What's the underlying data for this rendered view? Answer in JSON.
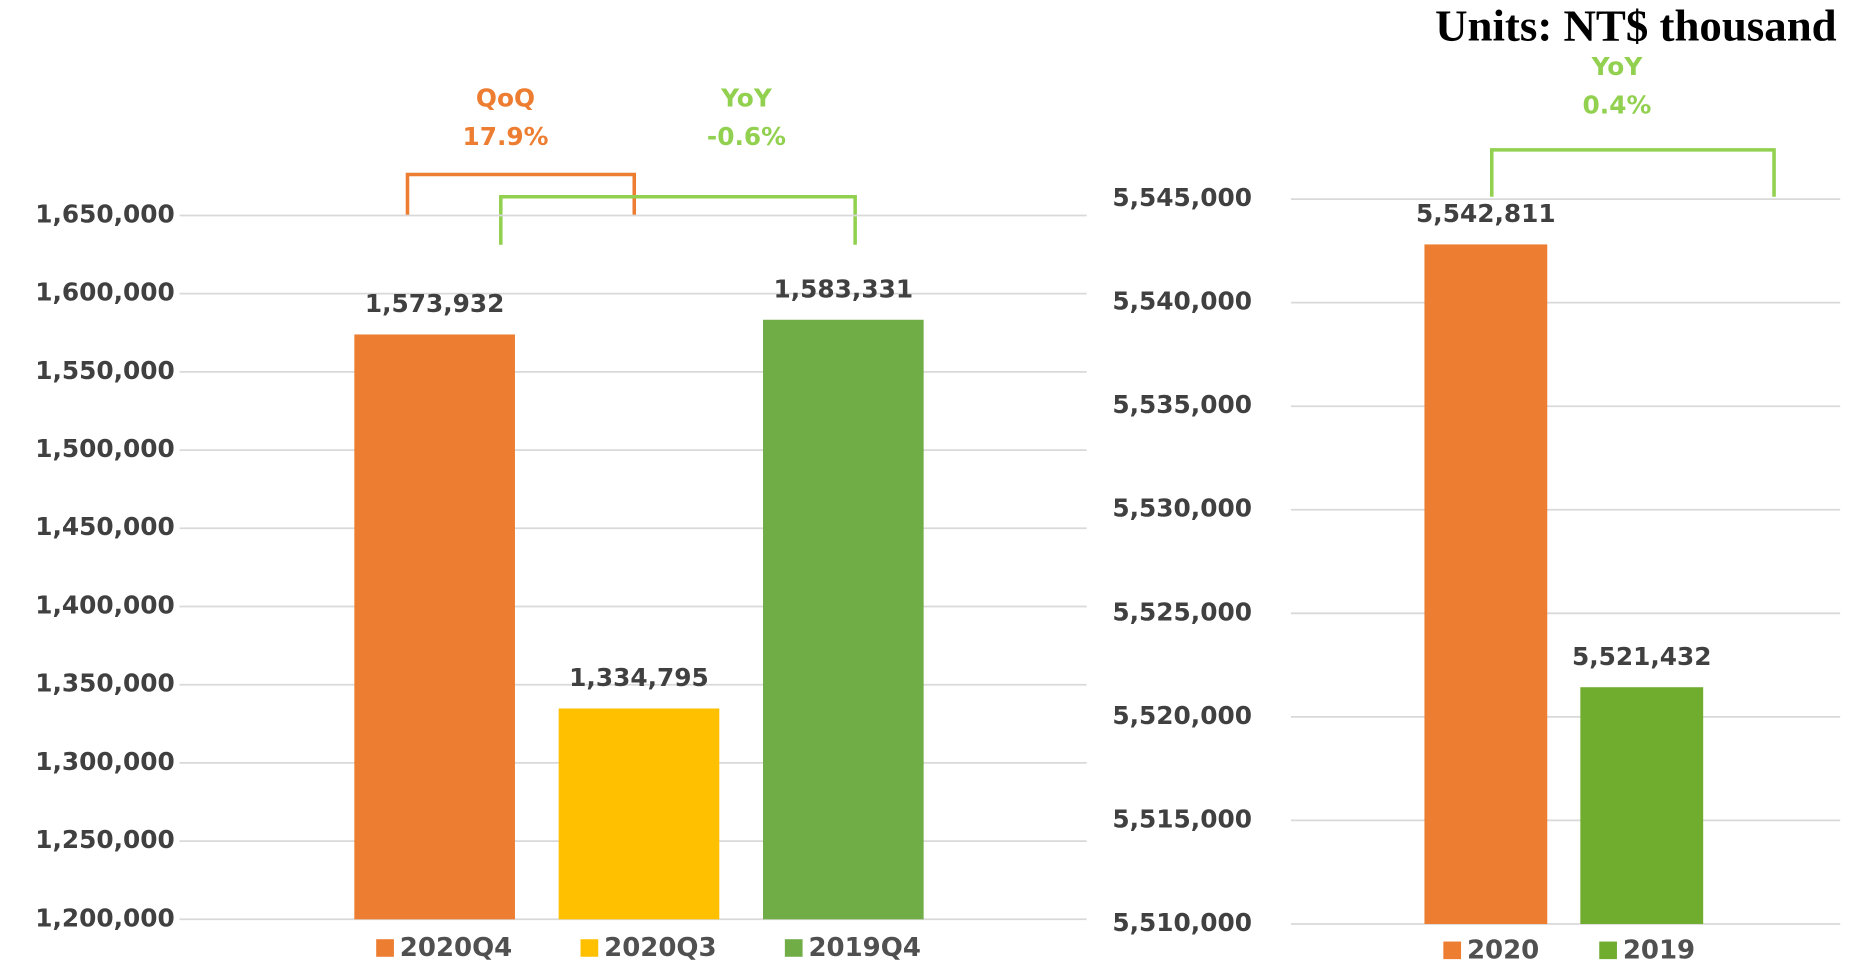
{
  "title": "Units: NT$ thousand",
  "chart_data": [
    {
      "type": "bar",
      "categories": [
        "2020Q4",
        "2020Q3",
        "2019Q4"
      ],
      "values": [
        1573932,
        1334795,
        1583331
      ],
      "value_labels": [
        "1,573,932",
        "1,334,795",
        "1,583,331"
      ],
      "colors": [
        "#ed7d31",
        "#ffc000",
        "#70ad47"
      ],
      "ylim": [
        1200000,
        1650000
      ],
      "yticks": [
        {
          "value": 1200000,
          "label": "1,200,000"
        },
        {
          "value": 1250000,
          "label": "1,250,000"
        },
        {
          "value": 1300000,
          "label": "1,300,000"
        },
        {
          "value": 1350000,
          "label": "1,350,000"
        },
        {
          "value": 1400000,
          "label": "1,400,000"
        },
        {
          "value": 1450000,
          "label": "1,450,000"
        },
        {
          "value": 1500000,
          "label": "1,500,000"
        },
        {
          "value": 1550000,
          "label": "1,550,000"
        },
        {
          "value": 1600000,
          "label": "1,600,000"
        },
        {
          "value": 1650000,
          "label": "1,650,000"
        }
      ],
      "grid": true,
      "annotations": [
        {
          "label": "QoQ",
          "text": "17.9%",
          "color": "#ed7d31"
        },
        {
          "label": "YoY",
          "text": "-0.6%",
          "color": "#92d050"
        }
      ]
    },
    {
      "type": "bar",
      "categories": [
        "2020",
        "2019"
      ],
      "values": [
        5542811,
        5521432
      ],
      "value_labels": [
        "5,542,811",
        "5,521,432"
      ],
      "colors": [
        "#ed7d31",
        "#70ad2f"
      ],
      "ylim": [
        5510000,
        5545000
      ],
      "yticks": [
        {
          "value": 5510000,
          "label": "5,510,000"
        },
        {
          "value": 5515000,
          "label": "5,515,000"
        },
        {
          "value": 5520000,
          "label": "5,520,000"
        },
        {
          "value": 5525000,
          "label": "5,525,000"
        },
        {
          "value": 5530000,
          "label": "5,530,000"
        },
        {
          "value": 5535000,
          "label": "5,535,000"
        },
        {
          "value": 5540000,
          "label": "5,540,000"
        },
        {
          "value": 5545000,
          "label": "5,545,000"
        }
      ],
      "grid": true,
      "annotations": [
        {
          "label": "YoY",
          "text": "0.4%",
          "color": "#92d050"
        }
      ]
    }
  ]
}
